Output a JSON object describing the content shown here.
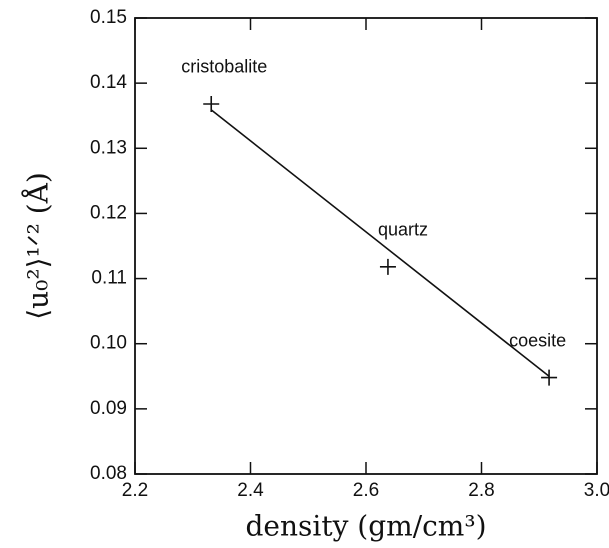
{
  "chart_data": {
    "type": "scatter",
    "x_label": "density (gm/cm³)",
    "y_label": "⟨u₀²⟩¹ᐟ² (Å)",
    "labels": [
      "cristobalite",
      "quartz",
      "coesite"
    ],
    "x": [
      2.332,
      2.638,
      2.917
    ],
    "values": [
      0.1368,
      0.1118,
      0.0948
    ],
    "fit_line": {
      "x": [
        2.332,
        2.917
      ],
      "values": [
        0.1359,
        0.095
      ]
    },
    "color": "#111111",
    "xlim": [
      2.2,
      3.0
    ],
    "xticks": [
      2.2,
      2.4,
      2.6,
      2.8,
      {
        "value": 3.0,
        "label": "3.0"
      }
    ],
    "ylim": [
      0.08,
      0.15
    ],
    "yticks": [
      0.08,
      0.09,
      {
        "value": 0.1,
        "label": "0.10"
      },
      0.11,
      0.12,
      0.13,
      0.14,
      0.15
    ]
  }
}
